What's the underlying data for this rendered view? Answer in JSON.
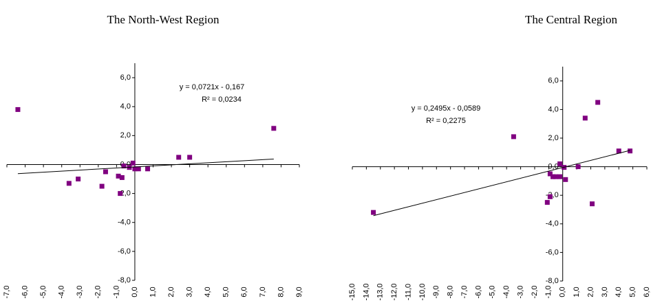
{
  "chart_data": [
    {
      "type": "scatter",
      "title": "The North-West Region",
      "annotations": [
        "y = 0,0721x - 0,167",
        "R² = 0,0234"
      ],
      "trendline": {
        "slope": 0.0721,
        "intercept": -0.167,
        "color": "#000000"
      },
      "series": [
        {
          "color": "#800080",
          "x": [
            -6.4,
            -3.6,
            -3.1,
            -1.8,
            -1.6,
            -0.9,
            -0.7,
            -0.8,
            -0.6,
            -0.3,
            -0.1,
            0.0,
            0.2,
            0.7,
            2.4,
            3.0,
            7.6
          ],
          "values": [
            3.8,
            -1.3,
            -1.0,
            -1.5,
            -0.5,
            -0.8,
            -0.9,
            -2.0,
            -0.1,
            -0.2,
            0.1,
            -0.3,
            -0.3,
            -0.3,
            0.5,
            0.5,
            2.5
          ]
        }
      ],
      "xlim": [
        -7,
        9
      ],
      "xticks": [
        {
          "value": -7,
          "label": "-7,0"
        },
        {
          "value": -6,
          "label": "-6,0"
        },
        {
          "value": -5,
          "label": "-5,0"
        },
        {
          "value": -4,
          "label": "-4,0"
        },
        {
          "value": -3,
          "label": "-3,0"
        },
        {
          "value": -2,
          "label": "-2,0"
        },
        {
          "value": -1,
          "label": "-1,0"
        },
        {
          "value": 0,
          "label": "0,0"
        },
        {
          "value": 1,
          "label": "1,0"
        },
        {
          "value": 2,
          "label": "2,0"
        },
        {
          "value": 3,
          "label": "3,0"
        },
        {
          "value": 4,
          "label": "4,0"
        },
        {
          "value": 5,
          "label": "5,0"
        },
        {
          "value": 6,
          "label": "6,0"
        },
        {
          "value": 7,
          "label": "7,0"
        },
        {
          "value": 8,
          "label": "8,0"
        },
        {
          "value": 9,
          "label": "9,0"
        }
      ],
      "ylim": [
        -8,
        7
      ],
      "yticks": [
        {
          "value": -8,
          "label": "-8,0"
        },
        {
          "value": -6,
          "label": "-6,0"
        },
        {
          "value": -4,
          "label": "-4,0"
        },
        {
          "value": -2,
          "label": "-2,0"
        },
        {
          "value": 0,
          "label": "0,0"
        },
        {
          "value": 2,
          "label": "2,0"
        },
        {
          "value": 4,
          "label": "4,0"
        },
        {
          "value": 6,
          "label": "6,0"
        }
      ]
    },
    {
      "type": "scatter",
      "title": "The Central Region",
      "annotations": [
        "y = 0,2495x - 0,0589",
        "R² = 0,2275"
      ],
      "trendline": {
        "slope": 0.2495,
        "intercept": -0.0589,
        "color": "#000000"
      },
      "series": [
        {
          "color": "#800080",
          "x": [
            -13.5,
            -3.5,
            -1.1,
            -0.9,
            -0.9,
            -0.7,
            -0.5,
            -0.2,
            -0.2,
            0.1,
            0.2,
            1.1,
            1.6,
            2.1,
            2.5,
            4.0,
            4.8
          ],
          "values": [
            -3.2,
            2.1,
            -2.5,
            -2.1,
            -0.5,
            -0.7,
            -0.7,
            -0.7,
            0.2,
            -0.05,
            -0.9,
            0.0,
            3.4,
            -2.6,
            4.5,
            1.1,
            1.1
          ]
        }
      ],
      "xlim": [
        -15,
        6
      ],
      "xticks": [
        {
          "value": -15,
          "label": "-15,0"
        },
        {
          "value": -14,
          "label": "-14,0"
        },
        {
          "value": -13,
          "label": "-13,0"
        },
        {
          "value": -12,
          "label": "-12,0"
        },
        {
          "value": -11,
          "label": "-11,0"
        },
        {
          "value": -10,
          "label": "-10,0"
        },
        {
          "value": -9,
          "label": "-9,0"
        },
        {
          "value": -8,
          "label": "-8,0"
        },
        {
          "value": -7,
          "label": "-7,0"
        },
        {
          "value": -6,
          "label": "-6,0"
        },
        {
          "value": -5,
          "label": "-5,0"
        },
        {
          "value": -4,
          "label": "-4,0"
        },
        {
          "value": -3,
          "label": "-3,0"
        },
        {
          "value": -2,
          "label": "-2,0"
        },
        {
          "value": -1,
          "label": "-1,0"
        },
        {
          "value": 0,
          "label": "0,0"
        },
        {
          "value": 1,
          "label": "1,0"
        },
        {
          "value": 2,
          "label": "2,0"
        },
        {
          "value": 3,
          "label": "3,0"
        },
        {
          "value": 4,
          "label": "4,0"
        },
        {
          "value": 5,
          "label": "5,0"
        },
        {
          "value": 6,
          "label": "6,0"
        }
      ],
      "ylim": [
        -8,
        7
      ],
      "yticks": [
        {
          "value": -8,
          "label": "-8,0"
        },
        {
          "value": -6,
          "label": "-6,0"
        },
        {
          "value": -4,
          "label": "-4,0"
        },
        {
          "value": -2,
          "label": "-2,0"
        },
        {
          "value": 0,
          "label": "0,0"
        },
        {
          "value": 2,
          "label": "2,0"
        },
        {
          "value": 4,
          "label": "4,0"
        },
        {
          "value": 6,
          "label": "6,0"
        }
      ]
    }
  ]
}
